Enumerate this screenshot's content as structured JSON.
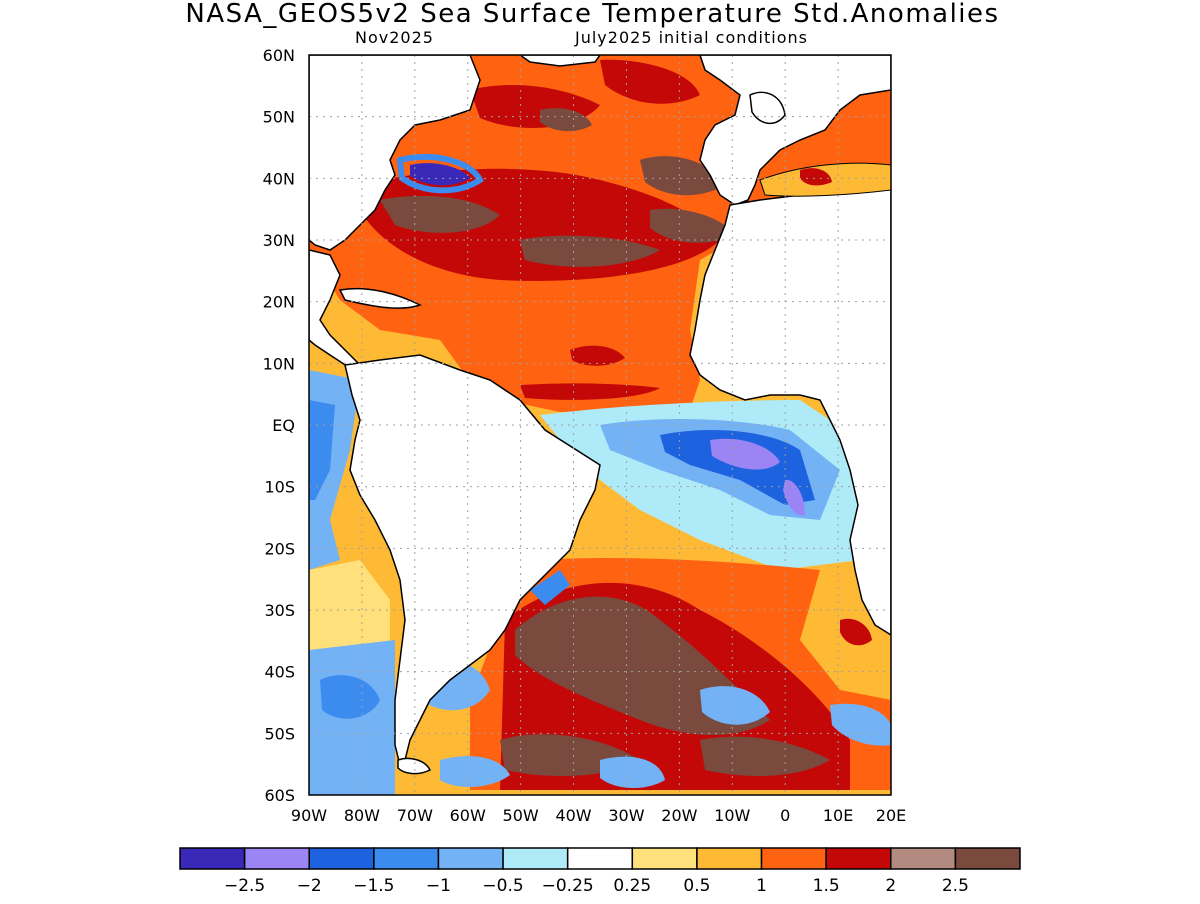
{
  "title": "NASA_GEOS5v2 Sea Surface Temperature Std.Anomalies",
  "subtitle_left": "Nov2025",
  "subtitle_right": "July2025 initial conditions",
  "lat_labels": [
    "60N",
    "50N",
    "40N",
    "30N",
    "20N",
    "10N",
    "EQ",
    "10S",
    "20S",
    "30S",
    "40S",
    "50S",
    "60S"
  ],
  "lon_labels": [
    "90W",
    "80W",
    "70W",
    "60W",
    "50W",
    "40W",
    "30W",
    "20W",
    "10W",
    "0",
    "10E",
    "20E"
  ],
  "colorbar": {
    "colors": [
      "#3a28b8",
      "#9b84f4",
      "#1d62de",
      "#3c8cf0",
      "#74b2f6",
      "#aeeaf8",
      "#ffffff",
      "#ffe07a",
      "#ffba35",
      "#ff6312",
      "#c40808",
      "#b38a80",
      "#7a4a3e"
    ],
    "labels": [
      "-2.5",
      "-2",
      "-1.5",
      "-1",
      "-0.5",
      "-0.25",
      "0.25",
      "0.5",
      "1",
      "1.5",
      "2",
      "2.5"
    ]
  },
  "colors": {
    "land": "#ffffff",
    "coast": "#000000",
    "grid": "#a0a0a0"
  }
}
